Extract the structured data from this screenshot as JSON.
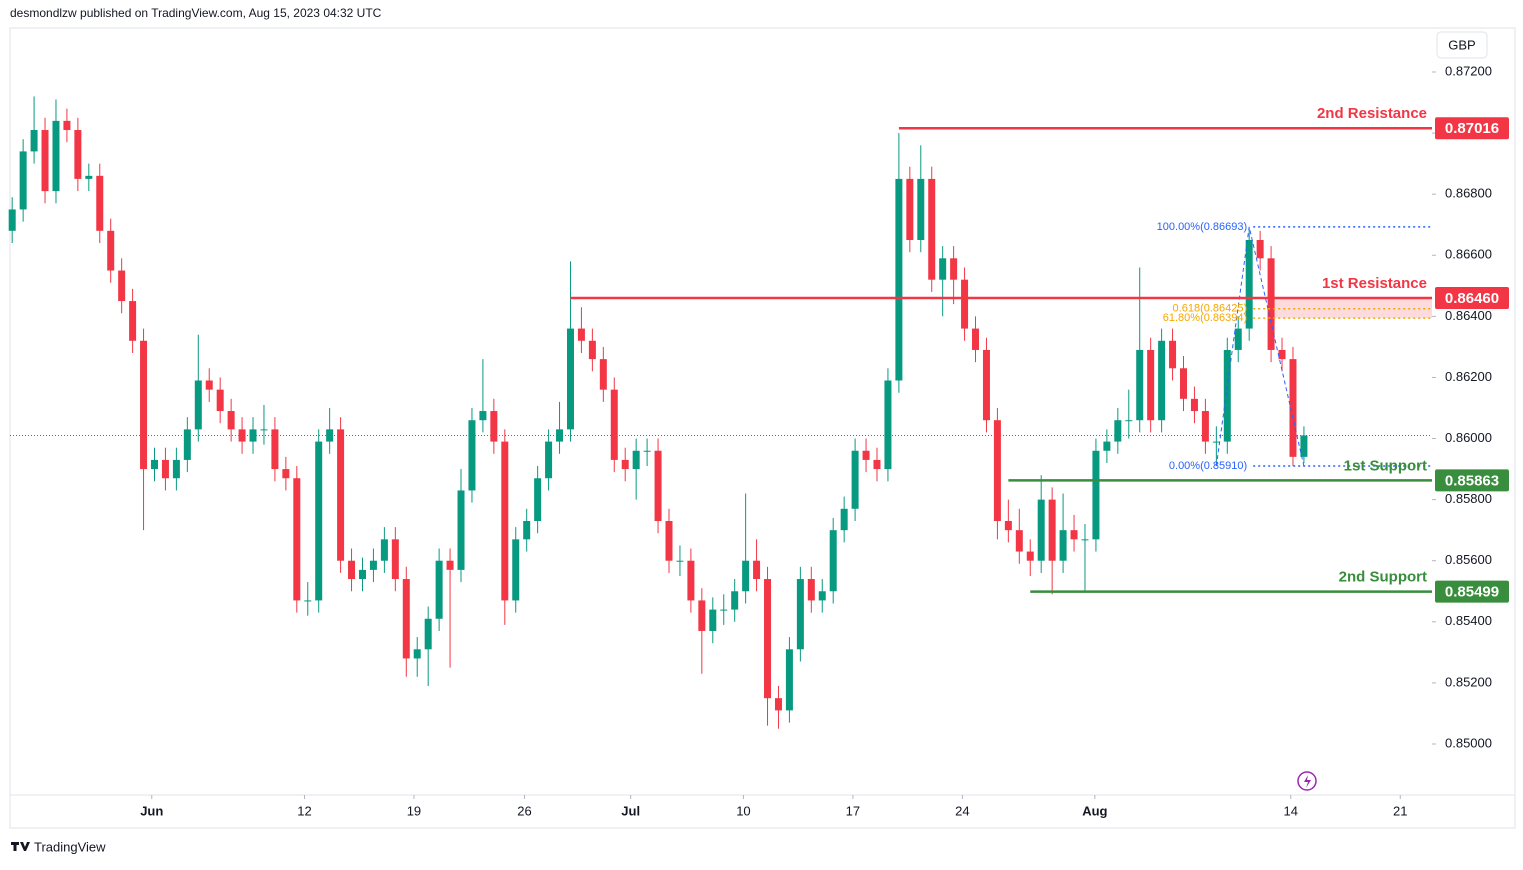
{
  "header": {
    "attribution": "desmondlzw published on TradingView.com, Aug 15, 2023 04:32 UTC"
  },
  "footer": {
    "brand": "TradingView"
  },
  "chart_data": {
    "type": "candlestick",
    "currency": "GBP",
    "up_color": "#089981",
    "down_color": "#f23645",
    "xlim": [
      -0.2,
      129.7
    ],
    "ylim": [
      0.84833,
      0.87344
    ],
    "xticks": [
      {
        "value": 12.75,
        "label": "Jun"
      },
      {
        "value": 26.7,
        "label": "12"
      },
      {
        "value": 36.7,
        "label": "19"
      },
      {
        "value": 46.8,
        "label": "26"
      },
      {
        "value": 56.5,
        "label": "Jul"
      },
      {
        "value": 66.8,
        "label": "10"
      },
      {
        "value": 76.8,
        "label": "17"
      },
      {
        "value": 86.8,
        "label": "24"
      },
      {
        "value": 98.9,
        "label": "Aug"
      },
      {
        "value": 116.8,
        "label": "14"
      },
      {
        "value": 126.8,
        "label": "21"
      }
    ],
    "yticks": [
      {
        "value": 0.85,
        "label": "0.85000"
      },
      {
        "value": 0.852,
        "label": "0.85200"
      },
      {
        "value": 0.854,
        "label": "0.85400"
      },
      {
        "value": 0.856,
        "label": "0.85600"
      },
      {
        "value": 0.858,
        "label": "0.85800"
      },
      {
        "value": 0.86,
        "label": "0.86000"
      },
      {
        "value": 0.862,
        "label": "0.86200"
      },
      {
        "value": 0.864,
        "label": "0.86400"
      },
      {
        "value": 0.866,
        "label": "0.86600"
      },
      {
        "value": 0.868,
        "label": "0.86800"
      },
      {
        "value": 0.87,
        "label": "0.87000"
      },
      {
        "value": 0.872,
        "label": "0.87200"
      }
    ],
    "open": [
      0.8668,
      0.8675,
      0.8694,
      0.8701,
      0.8681,
      0.8704,
      0.8701,
      0.8685,
      0.8686,
      0.8668,
      0.8655,
      0.8645,
      0.8632,
      0.859,
      0.8593,
      0.8587,
      0.8593,
      0.8603,
      0.8619,
      0.8616,
      0.8609,
      0.8603,
      0.8599,
      0.8603,
      0.8603,
      0.859,
      0.8587,
      0.8547,
      0.8547,
      0.8599,
      0.8603,
      0.856,
      0.8554,
      0.8557,
      0.856,
      0.8567,
      0.8554,
      0.8528,
      0.8531,
      0.8541,
      0.856,
      0.8557,
      0.8583,
      0.8606,
      0.8609,
      0.8599,
      0.8547,
      0.8567,
      0.8573,
      0.8587,
      0.8599,
      0.8603,
      0.8636,
      0.8632,
      0.8626,
      0.8616,
      0.8593,
      0.859,
      0.8596,
      0.8596,
      0.8573,
      0.856,
      0.856,
      0.8547,
      0.8537,
      0.8544,
      0.8544,
      0.855,
      0.856,
      0.8554,
      0.8515,
      0.8511,
      0.8531,
      0.8554,
      0.8547,
      0.855,
      0.857,
      0.8577,
      0.8596,
      0.8593,
      0.859,
      0.8619,
      0.8685,
      0.8665,
      0.8685,
      0.8652,
      0.8659,
      0.8652,
      0.8636,
      0.8629,
      0.8606,
      0.8573,
      0.857,
      0.8563,
      0.856,
      0.858,
      0.856,
      0.857,
      0.8567,
      0.8567,
      0.8596,
      0.8599,
      0.8606,
      0.8606,
      0.8629,
      0.8606,
      0.8632,
      0.8623,
      0.8613,
      0.8609,
      0.8599,
      0.8599,
      0.8629,
      0.8636,
      0.8665,
      0.8659,
      0.8629,
      0.8626,
      0.8594
    ],
    "high": [
      0.8679,
      0.8698,
      0.8712,
      0.8705,
      0.8711,
      0.8708,
      0.8705,
      0.869,
      0.869,
      0.8672,
      0.8659,
      0.8649,
      0.8636,
      0.8597,
      0.8597,
      0.8597,
      0.8607,
      0.8634,
      0.8623,
      0.862,
      0.8613,
      0.8607,
      0.8607,
      0.8611,
      0.8607,
      0.8594,
      0.8591,
      0.8553,
      0.8603,
      0.861,
      0.8607,
      0.8564,
      0.8561,
      0.8564,
      0.8571,
      0.8571,
      0.8558,
      0.8535,
      0.8545,
      0.8564,
      0.8564,
      0.859,
      0.861,
      0.8626,
      0.8613,
      0.8603,
      0.8571,
      0.8577,
      0.8591,
      0.8603,
      0.8612,
      0.8658,
      0.8643,
      0.8636,
      0.863,
      0.862,
      0.8597,
      0.86,
      0.86,
      0.86,
      0.8577,
      0.8565,
      0.8564,
      0.8551,
      0.8548,
      0.8549,
      0.8554,
      0.8582,
      0.8567,
      0.8558,
      0.8519,
      0.8535,
      0.8558,
      0.8558,
      0.8554,
      0.8574,
      0.8581,
      0.86,
      0.86,
      0.8597,
      0.8623,
      0.87,
      0.8689,
      0.8696,
      0.8689,
      0.8663,
      0.8663,
      0.8656,
      0.864,
      0.8633,
      0.861,
      0.858,
      0.8577,
      0.8567,
      0.8588,
      0.8584,
      0.8582,
      0.8575,
      0.8572,
      0.86,
      0.8603,
      0.861,
      0.8616,
      0.8656,
      0.8633,
      0.8636,
      0.8636,
      0.8627,
      0.8617,
      0.8613,
      0.8604,
      0.8633,
      0.864,
      0.8669,
      0.8668,
      0.8663,
      0.8633,
      0.863,
      0.8604
    ],
    "low": [
      0.8664,
      0.8671,
      0.869,
      0.8677,
      0.8677,
      0.8697,
      0.8681,
      0.8681,
      0.8664,
      0.8651,
      0.8641,
      0.8628,
      0.857,
      0.8586,
      0.8583,
      0.8583,
      0.8589,
      0.8599,
      0.8612,
      0.8605,
      0.8599,
      0.8595,
      0.8595,
      0.8598,
      0.8586,
      0.8583,
      0.8543,
      0.8542,
      0.8543,
      0.8595,
      0.8556,
      0.855,
      0.855,
      0.8553,
      0.8556,
      0.855,
      0.8522,
      0.8522,
      0.8519,
      0.8537,
      0.8525,
      0.8553,
      0.8579,
      0.8602,
      0.8595,
      0.8539,
      0.8543,
      0.8563,
      0.8569,
      0.8583,
      0.8595,
      0.8599,
      0.8628,
      0.8622,
      0.8612,
      0.8589,
      0.8586,
      0.858,
      0.8591,
      0.8569,
      0.8556,
      0.8555,
      0.8543,
      0.8523,
      0.8533,
      0.8539,
      0.854,
      0.8546,
      0.855,
      0.8506,
      0.8505,
      0.8507,
      0.8527,
      0.8543,
      0.8543,
      0.8546,
      0.8566,
      0.8573,
      0.8589,
      0.8586,
      0.8586,
      0.8615,
      0.8661,
      0.8661,
      0.8648,
      0.864,
      0.8644,
      0.8632,
      0.8625,
      0.8602,
      0.8567,
      0.8566,
      0.8559,
      0.8555,
      0.8556,
      0.8549,
      0.8556,
      0.8563,
      0.855,
      0.8563,
      0.8592,
      0.8595,
      0.86,
      0.8602,
      0.8602,
      0.8602,
      0.8619,
      0.8609,
      0.8605,
      0.8595,
      0.8591,
      0.8595,
      0.8625,
      0.8632,
      0.8655,
      0.8625,
      0.8622,
      0.8591,
      0.8592
    ],
    "close": [
      0.8675,
      0.8694,
      0.8701,
      0.8681,
      0.8704,
      0.8701,
      0.8685,
      0.8686,
      0.8668,
      0.8655,
      0.8645,
      0.8632,
      0.859,
      0.8593,
      0.8587,
      0.8593,
      0.8603,
      0.8619,
      0.8616,
      0.8609,
      0.8603,
      0.8599,
      0.8603,
      0.8603,
      0.859,
      0.8587,
      0.8547,
      0.8547,
      0.8599,
      0.8603,
      0.856,
      0.8554,
      0.8557,
      0.856,
      0.8567,
      0.8554,
      0.8528,
      0.8531,
      0.8541,
      0.856,
      0.8557,
      0.8583,
      0.8606,
      0.8609,
      0.8599,
      0.8547,
      0.8567,
      0.8573,
      0.8587,
      0.8599,
      0.8603,
      0.8636,
      0.8632,
      0.8626,
      0.8616,
      0.8593,
      0.859,
      0.8596,
      0.8596,
      0.8573,
      0.856,
      0.856,
      0.8547,
      0.8537,
      0.8544,
      0.8544,
      0.855,
      0.856,
      0.8554,
      0.8515,
      0.8511,
      0.8531,
      0.8554,
      0.8547,
      0.855,
      0.857,
      0.8577,
      0.8596,
      0.8593,
      0.859,
      0.8619,
      0.8685,
      0.8665,
      0.8685,
      0.8652,
      0.8659,
      0.8652,
      0.8636,
      0.8629,
      0.8606,
      0.8573,
      0.857,
      0.8563,
      0.856,
      0.858,
      0.856,
      0.857,
      0.8567,
      0.8567,
      0.8596,
      0.8599,
      0.8606,
      0.8606,
      0.8629,
      0.8606,
      0.8632,
      0.8623,
      0.8613,
      0.8609,
      0.8599,
      0.8599,
      0.8629,
      0.8636,
      0.8665,
      0.8659,
      0.8629,
      0.8626,
      0.8594,
      0.8601
    ],
    "levels": [
      {
        "name": "2nd Resistance",
        "value": 0.87016,
        "value_label": "0.87016",
        "color": "#f23645",
        "x_start": 81
      },
      {
        "name": "1st Resistance",
        "value": 0.8646,
        "value_label": "0.86460",
        "color": "#f23645",
        "x_start": 51
      },
      {
        "name": "1st Support",
        "value": 0.85863,
        "value_label": "0.85863",
        "color": "#388e3c",
        "x_start": 91
      },
      {
        "name": "2nd Support",
        "value": 0.85499,
        "value_label": "0.85499",
        "color": "#388e3c",
        "x_start": 93
      }
    ],
    "fib": {
      "x_start": 110,
      "levels": [
        {
          "value": 0.86693,
          "label": "100.00%(0.86693)",
          "color": "#2962ff"
        },
        {
          "value": 0.86425,
          "label": "0.618(0.86425)",
          "color": "#f7a600"
        },
        {
          "value": 0.86394,
          "label": "61.80%(0.86394)",
          "color": "#f7a600"
        },
        {
          "value": 0.8591,
          "label": "0.00%(0.85910)",
          "color": "#2962ff"
        }
      ]
    }
  }
}
